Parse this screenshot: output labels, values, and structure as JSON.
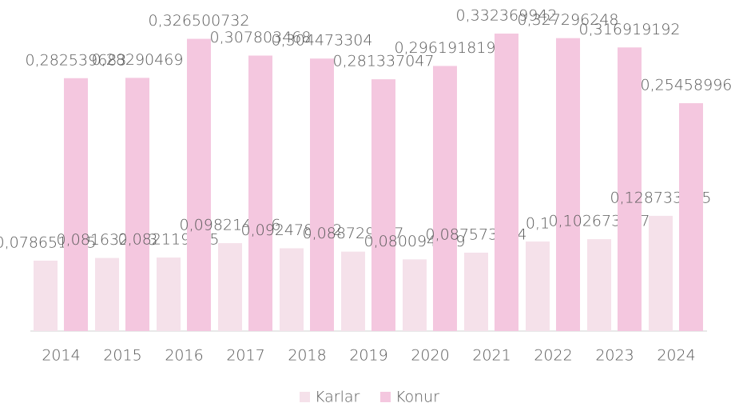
{
  "chart_data": {
    "type": "bar",
    "categories": [
      "2014",
      "2015",
      "2016",
      "2017",
      "2018",
      "2019",
      "2020",
      "2021",
      "2022",
      "2023",
      "2024"
    ],
    "series": [
      {
        "name": "Karlar",
        "color": "#f5e1ea",
        "values": [
          0.078651685,
          0.081632653,
          0.082119205,
          0.098214286,
          0.092478422,
          0.088729017,
          0.080094229,
          0.087573964,
          0.1,
          0.102673797,
          0.128733265
        ],
        "value_labels": [
          "0,078651685",
          "0,081632653",
          "0,082119205",
          "0,098214286",
          "0,092478422",
          "0,088729017",
          "0,080094229",
          "0,087573964",
          "0,1",
          "0,102673797",
          "0,128733265"
        ]
      },
      {
        "name": "Konur",
        "color": "#f4c7df",
        "values": [
          0.282539683,
          0.28290469,
          0.326500732,
          0.307803468,
          0.304473304,
          0.281337047,
          0.296191819,
          0.332369942,
          0.327296248,
          0.316919192,
          0.254589963
        ],
        "value_labels": [
          "0,282539683",
          "0,28290469",
          "0,326500732",
          "0,307803468",
          "0,304473304",
          "0,281337047",
          "0,296191819",
          "0,332369942",
          "0,327296248",
          "0,316919192",
          "0,254589963"
        ]
      }
    ]
  }
}
